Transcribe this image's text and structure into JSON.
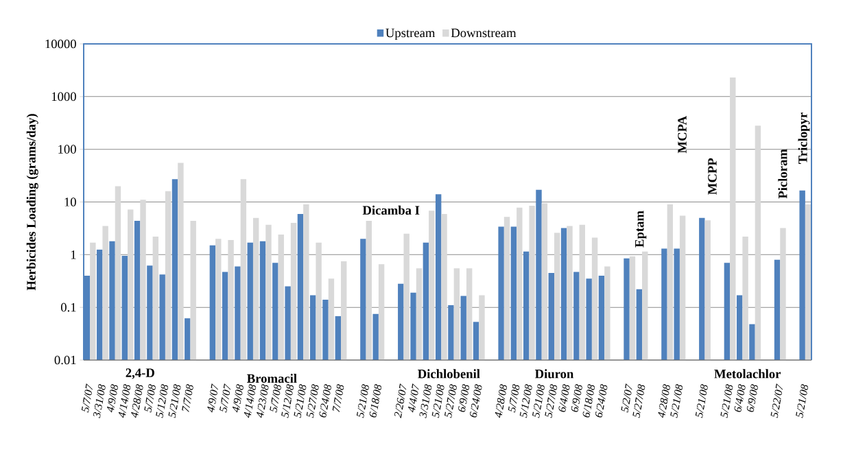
{
  "chart_data": {
    "type": "bar",
    "ylabel": "Herbicides Loading (grams/day)",
    "categories": [
      "5/7/07",
      "3/31/08",
      "4/9/08",
      "4/14/08",
      "4/28/08",
      "5/7/08",
      "5/12/08",
      "5/21/08",
      "7/7/08",
      null,
      "4/9/07",
      "5/7/07",
      "4/9/08",
      "4/14/08",
      "4/23/08",
      "5/7/08",
      "5/12/08",
      "5/21/08",
      "5/27/08",
      "6/24/08",
      "7/7/08",
      null,
      "5/21/08",
      "6/18/08",
      null,
      "2/26/07",
      "4/4/07",
      "3/31/08",
      "5/21/08",
      "5/27/08",
      "6/9/08",
      "6/24/08",
      null,
      "4/28/08",
      "5/7/08",
      "5/12/08",
      "5/21/08",
      "5/27/08",
      "6/4/08",
      "6/9/08",
      "6/18/08",
      "6/24/08",
      null,
      "5/2/07",
      "5/27/08",
      null,
      "4/28/08",
      "5/21/08",
      null,
      "5/21/08",
      null,
      "5/21/08",
      "6/4/08",
      "6/9/08",
      null,
      "5/22/07",
      null,
      "5/21/08"
    ],
    "series": [
      {
        "name": "Upstream",
        "color": "#4f81bd",
        "values": [
          0.4,
          1.25,
          1.8,
          0.95,
          4.4,
          0.62,
          0.42,
          27,
          0.062,
          null,
          1.5,
          0.47,
          0.6,
          1.7,
          1.8,
          0.7,
          0.25,
          5.9,
          0.17,
          0.14,
          0.068,
          null,
          2.0,
          0.075,
          null,
          0.28,
          0.19,
          1.7,
          14,
          0.11,
          0.165,
          0.053,
          null,
          3.4,
          3.4,
          1.15,
          17,
          0.45,
          3.2,
          0.47,
          0.35,
          0.4,
          null,
          0.85,
          0.22,
          null,
          1.3,
          1.3,
          null,
          5,
          null,
          0.7,
          0.17,
          0.048,
          null,
          0.8,
          null,
          16.5
        ]
      },
      {
        "name": "Downstream",
        "color": "#d9d9d9",
        "values": [
          1.7,
          3.5,
          20,
          7.2,
          11,
          2.2,
          16,
          55,
          4.4,
          null,
          2.0,
          1.9,
          27,
          5.0,
          3.7,
          2.4,
          4.0,
          9.0,
          1.7,
          0.35,
          0.75,
          null,
          4.4,
          0.66,
          null,
          2.5,
          0.55,
          6.8,
          5.9,
          0.55,
          0.55,
          0.17,
          null,
          5.2,
          7.8,
          8.5,
          9.5,
          2.6,
          3.5,
          3.7,
          2.1,
          0.6,
          null,
          0.93,
          1.15,
          null,
          9,
          5.5,
          null,
          4.5,
          null,
          2300,
          2.2,
          280,
          null,
          3.2,
          null,
          9
        ]
      }
    ],
    "ylim": [
      0.01,
      10000
    ],
    "yticks": [
      0.01,
      0.1,
      1,
      10,
      100,
      1000,
      10000
    ],
    "log": "y",
    "grid": "y",
    "legend": "top",
    "annotations": [
      "2,4-D",
      "Bromacil",
      "Dicamba I",
      "Dichlobenil",
      "Diuron",
      "Eptam",
      "MCPA",
      "MCPP",
      "Metolachlor",
      "Picloram",
      "Triclopyr"
    ]
  }
}
